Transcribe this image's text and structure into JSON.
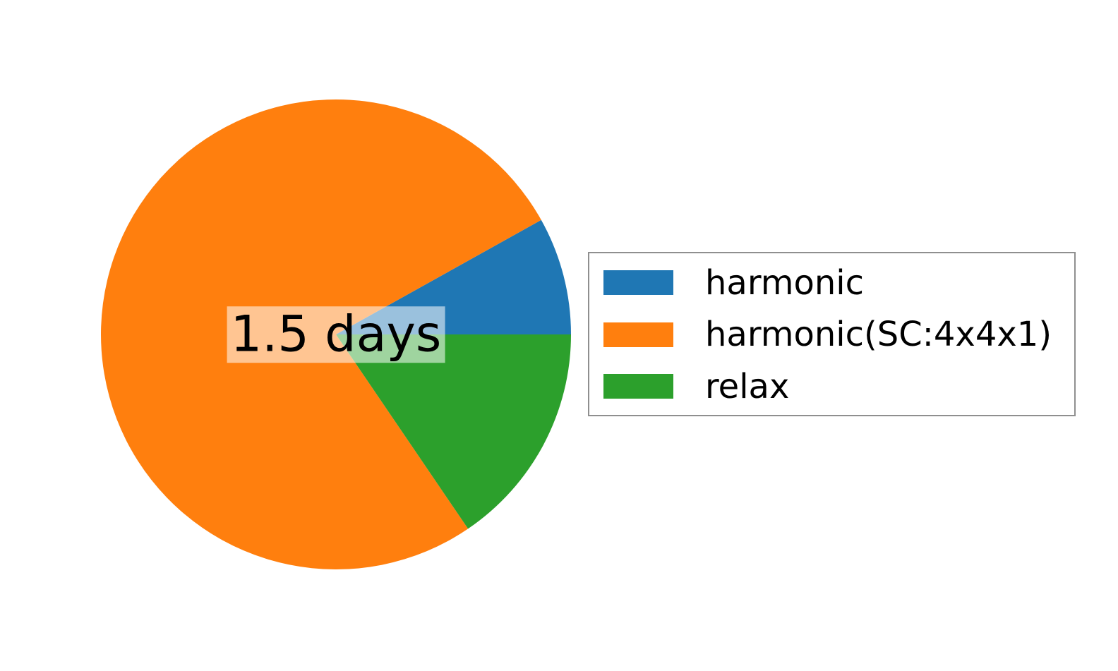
{
  "page": {
    "background": "#ffffff"
  },
  "chart_data": {
    "type": "pie",
    "title": "",
    "center_label": "1.5 days",
    "center_label_background": "rgba(255,255,255,0.55)",
    "start_angle_deg": 0,
    "counterclockwise": true,
    "slices": [
      {
        "label": "harmonic",
        "percent": 8.1,
        "color": "#1f77b4"
      },
      {
        "label": "harmonic(SC:4x4x1)",
        "percent": 76.4,
        "color": "#ff7f0e"
      },
      {
        "label": "relax",
        "percent": 15.5,
        "color": "#2ca02c"
      }
    ],
    "legend": {
      "position": "right",
      "border_color": "#8f8f8f",
      "background": "#ffffff",
      "entries": [
        "harmonic",
        "harmonic(SC:4x4x1)",
        "relax"
      ]
    }
  }
}
